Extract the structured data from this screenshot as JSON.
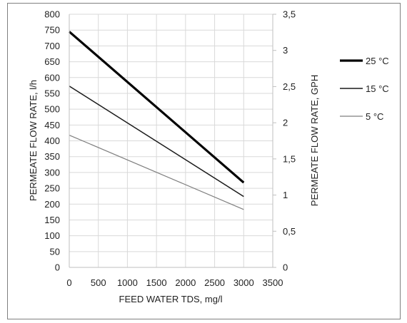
{
  "chart_data": {
    "type": "line",
    "title": "",
    "xlabel": "FEED WATER TDS, mg/l",
    "ylabel": "PERMEATE FLOW RATE, l/h",
    "y2label": "PERMEATE FLOW RATE, GPH",
    "xlim": [
      0,
      3500
    ],
    "ylim": [
      0,
      800
    ],
    "y2lim": [
      0,
      3.5
    ],
    "x_ticks": [
      "0",
      "500",
      "1000",
      "1500",
      "2000",
      "2500",
      "3000",
      "3500"
    ],
    "y_ticks": [
      "0",
      "50",
      "100",
      "150",
      "200",
      "250",
      "300",
      "350",
      "400",
      "450",
      "500",
      "550",
      "600",
      "650",
      "700",
      "750",
      "800"
    ],
    "y2_ticks": [
      "0",
      "0,5",
      "1",
      "1,5",
      "2",
      "2,5",
      "3",
      "3,5"
    ],
    "grid": true,
    "legend_position": "right",
    "series": [
      {
        "name": "25 °C",
        "x": [
          0,
          3000
        ],
        "values": [
          745,
          268
        ],
        "color": "#000000",
        "width": 3.2
      },
      {
        "name": "15 °C",
        "x": [
          0,
          3000
        ],
        "values": [
          573,
          224
        ],
        "color": "#1a1a1a",
        "width": 1.5
      },
      {
        "name": "5 °C",
        "x": [
          0,
          3000
        ],
        "values": [
          418,
          183
        ],
        "color": "#7f7f7f",
        "width": 1.2
      }
    ]
  }
}
